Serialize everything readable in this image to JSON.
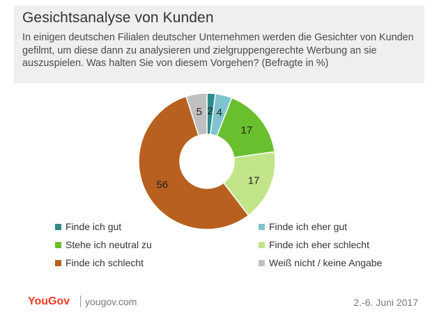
{
  "header": {
    "title": "Gesichtsanalyse von Kunden",
    "subtitle": "In einigen deutschen Filialen deutscher Unternehmen werden die Gesichter von Kunden gefilmt, um diese dann zu analysieren und zielgruppengerechte Werbung an sie auszuspielen. Was halten Sie von diesem Vorgehen? (Befragte in %)"
  },
  "chart_data": {
    "type": "pie",
    "subtype": "donut",
    "title": "Gesichtsanalyse von Kunden",
    "unit": "%",
    "slices": [
      {
        "label": "Finde ich gut",
        "value": 2,
        "color": "#2e8b8b"
      },
      {
        "label": "Finde ich eher gut",
        "value": 4,
        "color": "#7ec4cf"
      },
      {
        "label": "Stehe ich neutral zu",
        "value": 17,
        "color": "#6abf2e"
      },
      {
        "label": "Finde ich eher schlecht",
        "value": 17,
        "color": "#c3e58a"
      },
      {
        "label": "Finde ich schlecht",
        "value": 56,
        "color": "#b8601f"
      },
      {
        "label": "Weiß nicht /  keine Angabe",
        "value": 5,
        "color": "#bfbfbf"
      }
    ],
    "legend_position": "bottom"
  },
  "footer": {
    "brand": "YouGov",
    "url": "yougov.com",
    "date": "2.-6. Juni 2017"
  }
}
